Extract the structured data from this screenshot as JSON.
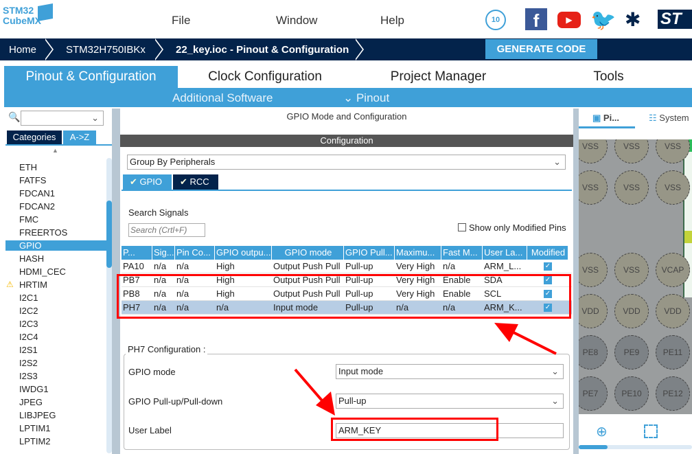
{
  "app": {
    "logo_line1": "STM32",
    "logo_line2": "CubeMX"
  },
  "menu": [
    "File",
    "Window",
    "Help"
  ],
  "social": [
    "anniversary-badge-icon",
    "facebook-icon",
    "youtube-icon",
    "twitter-icon",
    "network-icon",
    "st-logo"
  ],
  "breadcrumb": [
    "Home",
    "STM32H750IBKx",
    "22_key.ioc - Pinout & Configuration"
  ],
  "generate_label": "GENERATE CODE",
  "tabs": [
    "Pinout & Configuration",
    "Clock Configuration",
    "Project Manager",
    "Tools"
  ],
  "subtabs": {
    "additional": "Additional Software",
    "pinout": "Pinout"
  },
  "left": {
    "tab_categories": "Categories",
    "tab_az": "A->Z",
    "items": [
      "ETH",
      "FATFS",
      "FDCAN1",
      "FDCAN2",
      "FMC",
      "FREERTOS",
      "GPIO",
      "HASH",
      "HDMI_CEC",
      "HRTIM",
      "I2C1",
      "I2C2",
      "I2C3",
      "I2C4",
      "I2S1",
      "I2S2",
      "I2S3",
      "IWDG1",
      "JPEG",
      "LIBJPEG",
      "LPTIM1",
      "LPTIM2"
    ],
    "selected": "GPIO",
    "warning": "HRTIM"
  },
  "mid": {
    "title": "GPIO Mode and Configuration",
    "config": "Configuration",
    "group_by": "Group By Peripherals",
    "tab_gpio": "GPIO",
    "tab_rcc": "RCC",
    "search_label": "Search Signals",
    "search_placeholder": "Search (Crtl+F)",
    "show_modified": "Show only Modified Pins",
    "columns": [
      "P...",
      "Sig...",
      "Pin Co...",
      "GPIO outpu...",
      "GPIO mode",
      "GPIO Pull...",
      "Maximu...",
      "Fast M...",
      "User La...",
      "Modified"
    ],
    "rows": [
      [
        "PA10",
        "n/a",
        "n/a",
        "High",
        "Output Push Pull",
        "Pull-up",
        "Very High",
        "n/a",
        "ARM_L..."
      ],
      [
        "PB7",
        "n/a",
        "n/a",
        "High",
        "Output Push Pull",
        "Pull-up",
        "Very High",
        "Enable",
        "SDA"
      ],
      [
        "PB8",
        "n/a",
        "n/a",
        "High",
        "Output Push Pull",
        "Pull-up",
        "Very High",
        "Enable",
        "SCL"
      ],
      [
        "PH7",
        "n/a",
        "n/a",
        "n/a",
        "Input mode",
        "Pull-up",
        "n/a",
        "n/a",
        "ARM_K..."
      ]
    ],
    "selected_row": 3,
    "pin_config": {
      "title": "PH7 Configuration :",
      "gpio_mode_label": "GPIO mode",
      "gpio_mode": "Input mode",
      "pull_label": "GPIO Pull-up/Pull-down",
      "pull": "Pull-up",
      "user_label_label": "User Label",
      "user_label": "ARM_KEY"
    }
  },
  "right": {
    "tab_pinout": "Pi...",
    "tab_system": "System",
    "pins": [
      [
        "VSS",
        "VSS",
        "VSS"
      ],
      [
        "VSS",
        "VSS",
        "VSS"
      ],
      [
        "VSS",
        "VSS",
        "VCAP"
      ],
      [
        "VDD",
        "VDD",
        "VDD"
      ],
      [
        "PE8",
        "PE9",
        "PE11"
      ],
      [
        "PE7",
        "PE10",
        "PE12"
      ]
    ]
  },
  "colors": {
    "accent": "#3fa0d8",
    "navy": "#03234b",
    "highlight": "#ff0000"
  }
}
